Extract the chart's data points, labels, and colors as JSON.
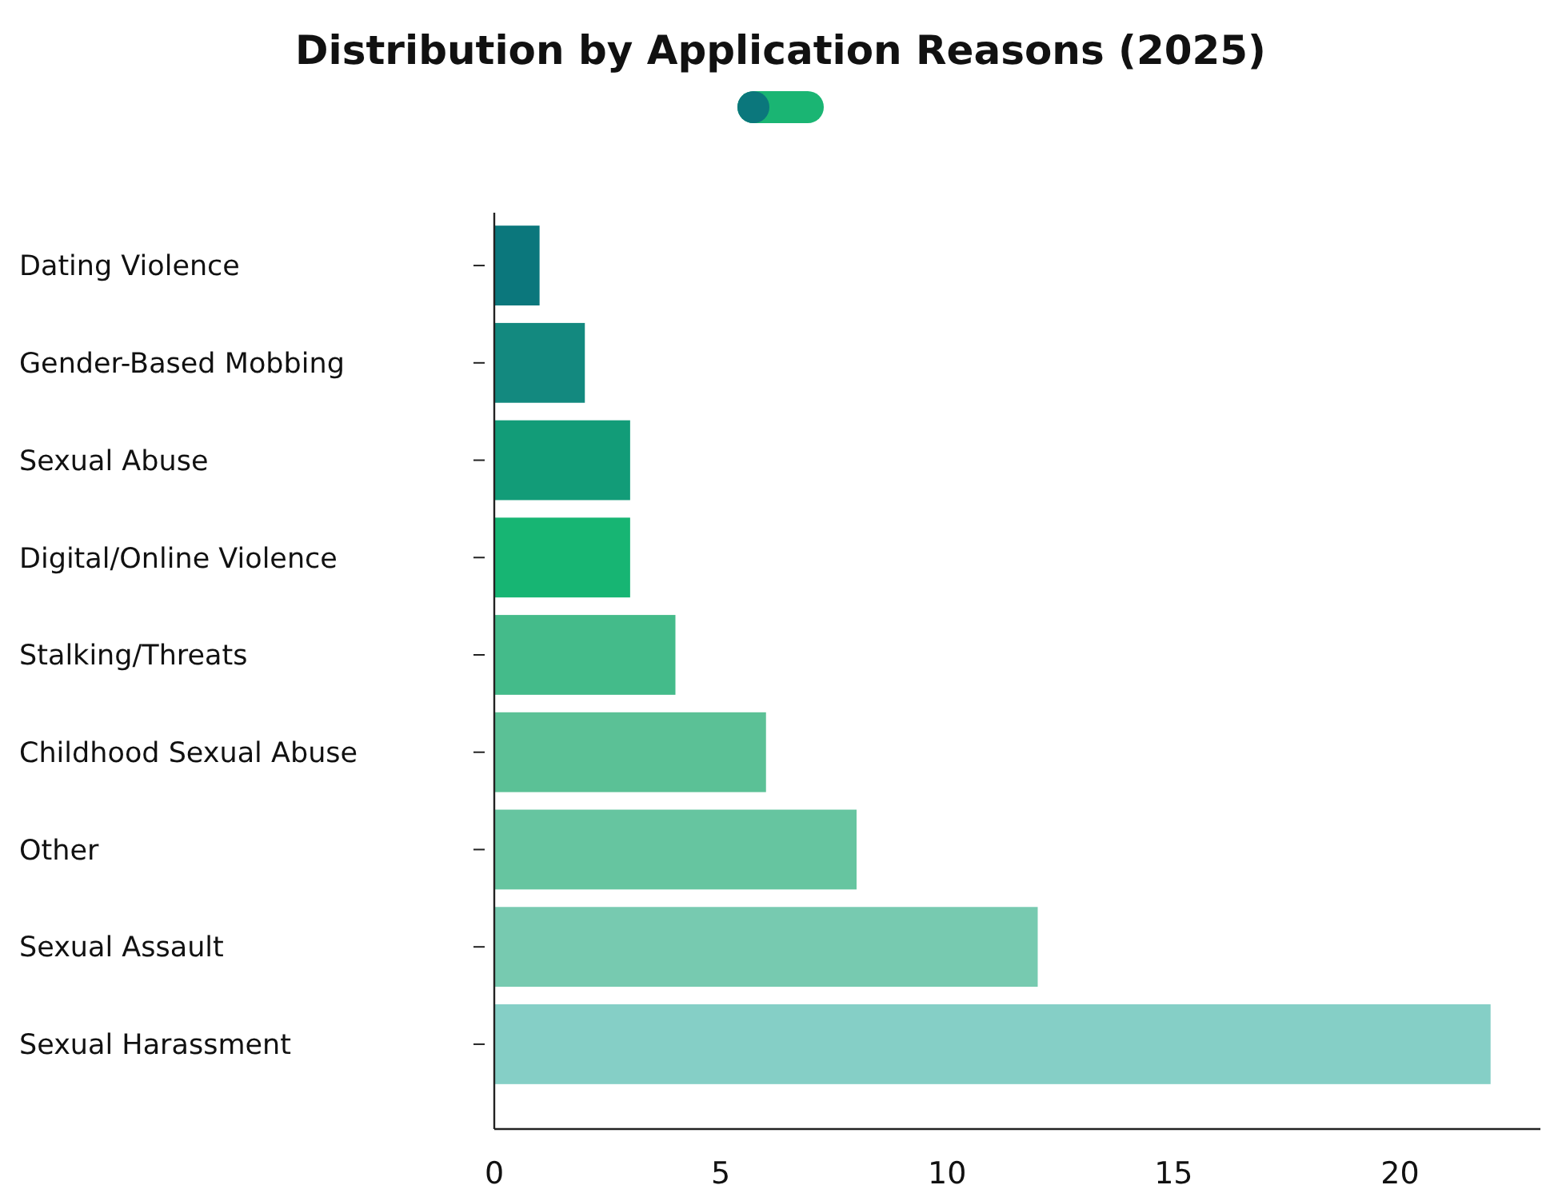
{
  "chart_data": {
    "type": "bar",
    "orientation": "horizontal",
    "title": "Distribution by Application Reasons (2025)",
    "categories": [
      "Dating Violence",
      "Gender-Based Mobbing",
      "Sexual Abuse",
      "Digital/Online Violence",
      "Stalking/Threats",
      "Childhood Sexual Abuse",
      "Other",
      "Sexual Assault",
      "Sexual Harassment"
    ],
    "values": [
      1,
      2,
      3,
      3,
      4,
      6,
      8,
      12,
      22
    ],
    "colors": [
      "#0b777c",
      "#13897f",
      "#129c78",
      "#17b573",
      "#44bb8a",
      "#5bc196",
      "#66c5a0",
      "#77cab0",
      "#85cfc6"
    ],
    "xlim": [
      0,
      23.1
    ],
    "xticks": [
      0,
      5,
      10,
      15,
      20
    ]
  }
}
